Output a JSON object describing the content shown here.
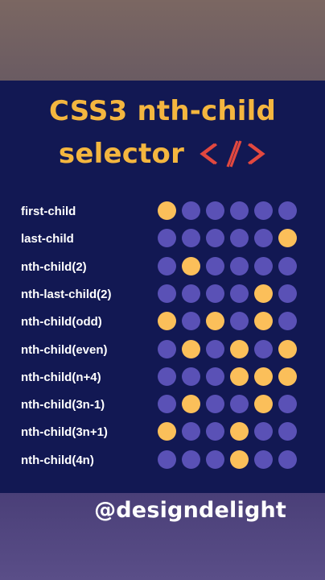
{
  "title": {
    "line1": "CSS3 nth-child",
    "line2": "selector"
  },
  "code_icon_text": "</>",
  "colors": {
    "title": "#f4b63f",
    "dot_off": "#5a51b6",
    "dot_on": "#fbbf5a",
    "panel": "#121853",
    "icon": "#e2483f"
  },
  "rows": [
    {
      "label": "first-child",
      "on": [
        1
      ]
    },
    {
      "label": "last-child",
      "on": [
        6
      ]
    },
    {
      "label": "nth-child(2)",
      "on": [
        2
      ]
    },
    {
      "label": "nth-last-child(2)",
      "on": [
        5
      ]
    },
    {
      "label": "nth-child(odd)",
      "on": [
        1,
        3,
        5
      ]
    },
    {
      "label": "nth-child(even)",
      "on": [
        2,
        4,
        6
      ]
    },
    {
      "label": "nth-child(n+4)",
      "on": [
        4,
        5,
        6
      ]
    },
    {
      "label": "nth-child(3n-1)",
      "on": [
        2,
        5
      ]
    },
    {
      "label": "nth-child(3n+1)",
      "on": [
        1,
        4
      ]
    },
    {
      "label": "nth-child(4n)",
      "on": [
        4
      ]
    }
  ],
  "handle": "@designdelight"
}
